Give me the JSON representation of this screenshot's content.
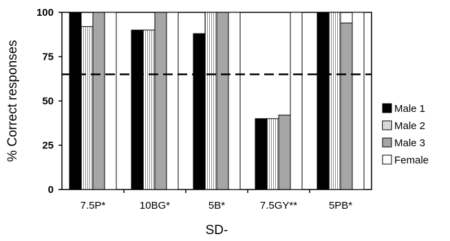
{
  "chart_data": {
    "type": "bar",
    "xlabel": "SD-",
    "ylabel": "% Correct responses",
    "ylim": [
      0,
      100
    ],
    "yticks": [
      0,
      25,
      50,
      75,
      100
    ],
    "categories": [
      "7.5P*",
      "10BG*",
      "5B*",
      "7.5GY**",
      "5PB*"
    ],
    "series": [
      {
        "name": "Male 1",
        "values": [
          100,
          90,
          88,
          40,
          100
        ],
        "fill": "#000000",
        "pattern": "solid"
      },
      {
        "name": "Male 2",
        "values": [
          92,
          90,
          100,
          40,
          100
        ],
        "fill": "#ffffff",
        "pattern": "vertical-stripes"
      },
      {
        "name": "Male 3",
        "values": [
          100,
          100,
          100,
          42,
          94
        ],
        "fill": "#a6a6a6",
        "pattern": "solid"
      },
      {
        "name": "Female",
        "values": [
          100,
          100,
          100,
          100,
          100
        ],
        "fill": "#ffffff",
        "pattern": "solid"
      }
    ],
    "reference_line": {
      "value": 65,
      "style": "dashed"
    },
    "legend_position": "right",
    "grid": false
  }
}
